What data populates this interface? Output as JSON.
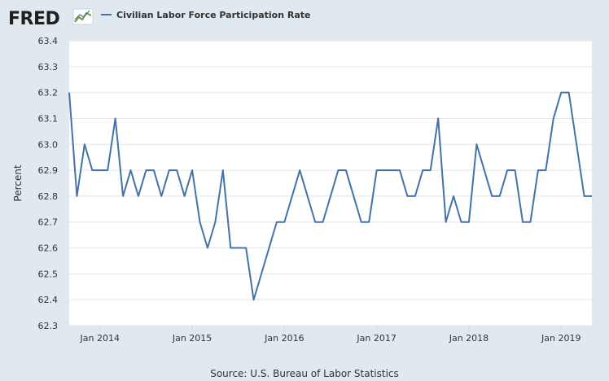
{
  "header": {
    "logo_text": "FRED",
    "logo_icon": "line-chart-icon"
  },
  "legend": {
    "series_label": "Civilian Labor Force Participation Rate"
  },
  "source": {
    "text": "Source: U.S. Bureau of Labor Statistics"
  },
  "colors": {
    "line": "#4572a7",
    "plot_background": "#ffffff",
    "page_background": "#e1e9f0",
    "grid": "#e6e6e6"
  },
  "chart_data": {
    "type": "line",
    "title": "",
    "xlabel": "",
    "ylabel": "Percent",
    "ylim": [
      62.3,
      63.4
    ],
    "xlim": [
      "2013-09",
      "2019-05"
    ],
    "yticks": [
      "62.3",
      "62.4",
      "62.5",
      "62.6",
      "62.7",
      "62.8",
      "62.9",
      "63.0",
      "63.1",
      "63.2",
      "63.3",
      "63.4"
    ],
    "xticks": [
      {
        "date": "2014-01",
        "label": "Jan 2014"
      },
      {
        "date": "2015-01",
        "label": "Jan 2015"
      },
      {
        "date": "2016-01",
        "label": "Jan 2016"
      },
      {
        "date": "2017-01",
        "label": "Jan 2017"
      },
      {
        "date": "2018-01",
        "label": "Jan 2018"
      },
      {
        "date": "2019-01",
        "label": "Jan 2019"
      }
    ],
    "grid": true,
    "legend_position": "top",
    "series": [
      {
        "name": "Civilian Labor Force Participation Rate",
        "x": [
          "2013-09",
          "2013-10",
          "2013-11",
          "2013-12",
          "2014-01",
          "2014-02",
          "2014-03",
          "2014-04",
          "2014-05",
          "2014-06",
          "2014-07",
          "2014-08",
          "2014-09",
          "2014-10",
          "2014-11",
          "2014-12",
          "2015-01",
          "2015-02",
          "2015-03",
          "2015-04",
          "2015-05",
          "2015-06",
          "2015-07",
          "2015-08",
          "2015-09",
          "2015-10",
          "2015-11",
          "2015-12",
          "2016-01",
          "2016-02",
          "2016-03",
          "2016-04",
          "2016-05",
          "2016-06",
          "2016-07",
          "2016-08",
          "2016-09",
          "2016-10",
          "2016-11",
          "2016-12",
          "2017-01",
          "2017-02",
          "2017-03",
          "2017-04",
          "2017-05",
          "2017-06",
          "2017-07",
          "2017-08",
          "2017-09",
          "2017-10",
          "2017-11",
          "2017-12",
          "2018-01",
          "2018-02",
          "2018-03",
          "2018-04",
          "2018-05",
          "2018-06",
          "2018-07",
          "2018-08",
          "2018-09",
          "2018-10",
          "2018-11",
          "2018-12",
          "2019-01",
          "2019-02",
          "2019-03",
          "2019-04",
          "2019-05"
        ],
        "values": [
          63.2,
          62.8,
          63.0,
          62.9,
          62.9,
          62.9,
          63.1,
          62.8,
          62.9,
          62.8,
          62.9,
          62.9,
          62.8,
          62.9,
          62.9,
          62.8,
          62.9,
          62.7,
          62.6,
          62.7,
          62.9,
          62.6,
          62.6,
          62.6,
          62.4,
          62.5,
          62.6,
          62.7,
          62.7,
          62.8,
          62.9,
          62.8,
          62.7,
          62.7,
          62.8,
          62.9,
          62.9,
          62.8,
          62.7,
          62.7,
          62.9,
          62.9,
          62.9,
          62.9,
          62.8,
          62.8,
          62.9,
          62.9,
          63.1,
          62.7,
          62.8,
          62.7,
          62.7,
          63.0,
          62.9,
          62.8,
          62.8,
          62.9,
          62.9,
          62.7,
          62.7,
          62.9,
          62.9,
          63.1,
          63.2,
          63.2,
          63.0,
          62.8,
          62.8
        ]
      }
    ]
  }
}
